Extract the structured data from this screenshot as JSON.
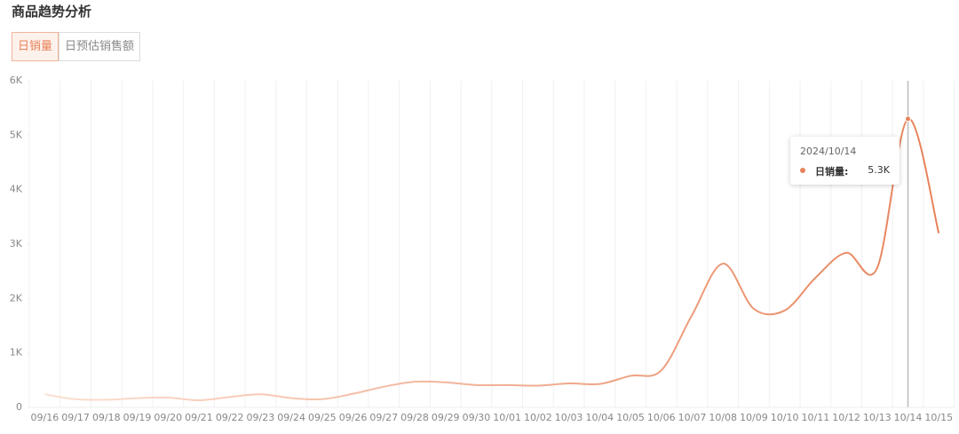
{
  "header": {
    "title": "商品趋势分析"
  },
  "tabs": [
    "日销量",
    "日预估销售额"
  ],
  "tooltip": {
    "title": "2024/10/14",
    "series_label": "日销量:"
  },
  "chart_data": {
    "type": "line",
    "categories": [
      "09/16",
      "09/17",
      "09/18",
      "09/19",
      "09/20",
      "09/21",
      "09/22",
      "09/23",
      "09/24",
      "09/25",
      "09/26",
      "09/27",
      "09/28",
      "09/29",
      "09/30",
      "10/01",
      "10/02",
      "10/03",
      "10/04",
      "10/05",
      "10/06",
      "10/07",
      "10/08",
      "10/09",
      "10/10",
      "10/11",
      "10/12",
      "10/13",
      "10/14",
      "10/15"
    ],
    "values": [
      240,
      150,
      140,
      170,
      180,
      130,
      190,
      240,
      170,
      150,
      250,
      380,
      470,
      460,
      410,
      410,
      400,
      440,
      430,
      580,
      680,
      1700,
      2640,
      1810,
      1780,
      2380,
      2840,
      2560,
      5300,
      3200
    ],
    "value_labels": [
      null,
      null,
      null,
      null,
      null,
      null,
      null,
      null,
      null,
      null,
      null,
      null,
      null,
      null,
      null,
      null,
      null,
      null,
      null,
      null,
      null,
      null,
      null,
      null,
      null,
      null,
      null,
      null,
      "5.3K",
      null
    ],
    "color": "#e8825a",
    "ylim": [
      0,
      6000
    ],
    "yticks": [
      0,
      {
        "value": 1000,
        "label": "1K"
      },
      {
        "value": 2000,
        "label": "2K"
      },
      {
        "value": 3000,
        "label": "3K"
      },
      {
        "value": 4000,
        "label": "4K"
      },
      {
        "value": 5000,
        "label": "5K"
      },
      {
        "value": 6000,
        "label": "6K"
      }
    ],
    "grid": true
  }
}
